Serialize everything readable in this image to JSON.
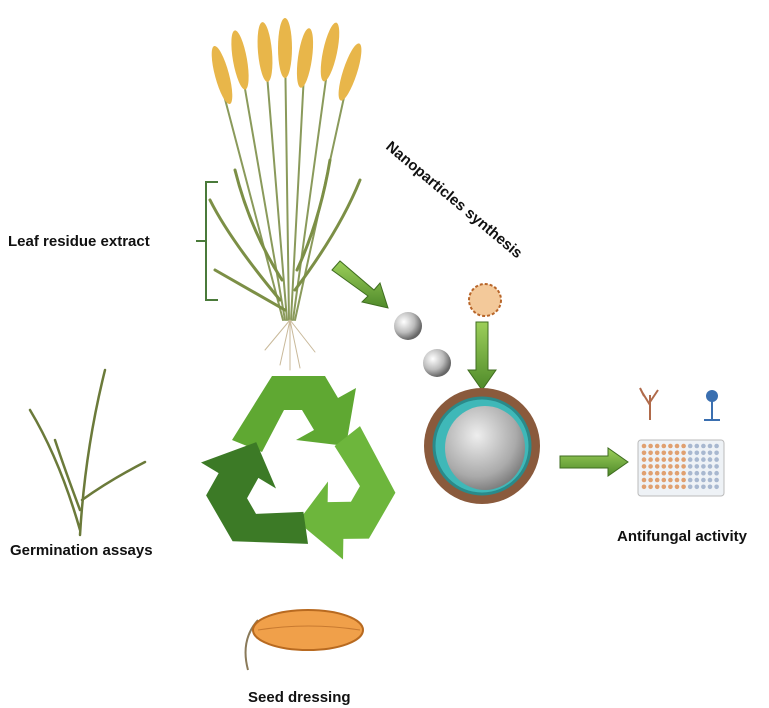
{
  "labels": {
    "leaf": "Leaf residue extract",
    "nano": "Nanoparticles synthesis",
    "germination": "Germination assays",
    "antifungal": "Antifungal activity",
    "seed": "Seed dressing"
  }
}
